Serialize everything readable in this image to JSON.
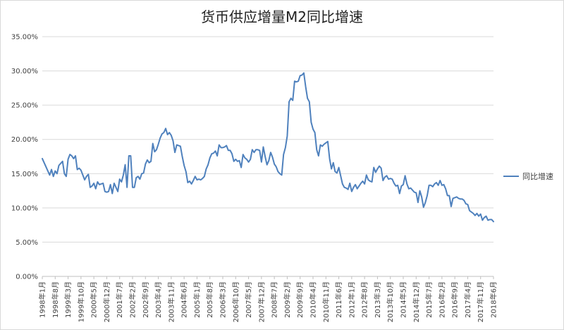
{
  "chart_data": {
    "type": "line",
    "title": "货币供应增量M2同比增速",
    "xlabel": "",
    "ylabel": "",
    "ylim": [
      0,
      35
    ],
    "yticks": [
      "0.00%",
      "5.00%",
      "10.00%",
      "15.00%",
      "20.00%",
      "25.00%",
      "30.00%",
      "35.00%"
    ],
    "grid": true,
    "legend_position": "right",
    "color": "#4f81bd",
    "x_start": "1998年1月",
    "x_end": "2018年6月",
    "xtick_labels": [
      "1998年1月",
      "1998年8月",
      "1999年3月",
      "1999年10月",
      "2000年5月",
      "2000年12月",
      "2001年7月",
      "2002年2月",
      "2002年9月",
      "2003年4月",
      "2003年11月",
      "2004年6月",
      "2005年1月",
      "2005年8月",
      "2006年3月",
      "2006年10月",
      "2007年5月",
      "2007年12月",
      "2008年7月",
      "2009年2月",
      "2009年9月",
      "2010年4月",
      "2010年11月",
      "2011年6月",
      "2012年1月",
      "2012年8月",
      "2013年3月",
      "2013年10月",
      "2014年5月",
      "2014年12月",
      "2015年7月",
      "2016年2月",
      "2016年9月",
      "2017年4月",
      "2017年11月",
      "2018年6月"
    ],
    "series": [
      {
        "name": "同比增速",
        "points": [
          [
            "1998年1月",
            17.2
          ],
          [
            "1998年3月",
            16.0
          ],
          [
            "1998年5月",
            14.8
          ],
          [
            "1998年6月",
            15.6
          ],
          [
            "1998年7月",
            14.6
          ],
          [
            "1998年8月",
            15.4
          ],
          [
            "1998年9月",
            15.0
          ],
          [
            "1998年10月",
            16.2
          ],
          [
            "1998年12月",
            16.8
          ],
          [
            "1999年1月",
            15.0
          ],
          [
            "1999年2月",
            14.6
          ],
          [
            "1999年3月",
            17.1
          ],
          [
            "1999年4月",
            17.8
          ],
          [
            "1999年5月",
            17.6
          ],
          [
            "1999年6月",
            17.2
          ],
          [
            "1999年7月",
            17.6
          ],
          [
            "1999年8月",
            15.6
          ],
          [
            "1999年9月",
            15.8
          ],
          [
            "1999年10月",
            15.5
          ],
          [
            "1999年11月",
            14.8
          ],
          [
            "1999年12月",
            14.1
          ],
          [
            "2000年1月",
            14.6
          ],
          [
            "2000年2月",
            14.9
          ],
          [
            "2000年3月",
            13.0
          ],
          [
            "2000年4月",
            13.2
          ],
          [
            "2000年5月",
            13.6
          ],
          [
            "2000年6月",
            12.8
          ],
          [
            "2000年7月",
            13.8
          ],
          [
            "2000年8月",
            13.4
          ],
          [
            "2000年9月",
            13.5
          ],
          [
            "2000年10月",
            13.6
          ],
          [
            "2000年11月",
            12.4
          ],
          [
            "2000年12月",
            12.3
          ],
          [
            "2001年1月",
            12.4
          ],
          [
            "2001年2月",
            13.4
          ],
          [
            "2001年3月",
            12.1
          ],
          [
            "2001年4月",
            13.6
          ],
          [
            "2001年5月",
            13.0
          ],
          [
            "2001年6月",
            12.4
          ],
          [
            "2001年7月",
            14.2
          ],
          [
            "2001年8月",
            13.8
          ],
          [
            "2001年9月",
            14.8
          ],
          [
            "2001年10月",
            16.3
          ],
          [
            "2001年11月",
            13.0
          ],
          [
            "2001年12月",
            17.6
          ],
          [
            "2002年1月",
            17.6
          ],
          [
            "2002年2月",
            13.0
          ],
          [
            "2002年3月",
            13.0
          ],
          [
            "2002年4月",
            14.4
          ],
          [
            "2002年5月",
            14.6
          ],
          [
            "2002年6月",
            14.2
          ],
          [
            "2002年7月",
            15.0
          ],
          [
            "2002年8月",
            15.1
          ],
          [
            "2002年9月",
            16.4
          ],
          [
            "2002年10月",
            17.0
          ],
          [
            "2002年11月",
            16.6
          ],
          [
            "2002年12月",
            16.8
          ],
          [
            "2003年1月",
            19.4
          ],
          [
            "2003年2月",
            18.2
          ],
          [
            "2003年3月",
            18.5
          ],
          [
            "2003年4月",
            19.3
          ],
          [
            "2003年5月",
            20.2
          ],
          [
            "2003年6月",
            20.8
          ],
          [
            "2003年7月",
            21.0
          ],
          [
            "2003年8月",
            21.6
          ],
          [
            "2003年9月",
            20.7
          ],
          [
            "2003年10月",
            21.0
          ],
          [
            "2003年11月",
            20.6
          ],
          [
            "2003年12月",
            19.8
          ],
          [
            "2004年1月",
            18.1
          ],
          [
            "2004年2月",
            19.2
          ],
          [
            "2004年3月",
            19.1
          ],
          [
            "2004年4月",
            19.0
          ],
          [
            "2004年5月",
            17.5
          ],
          [
            "2004年6月",
            16.2
          ],
          [
            "2004年7月",
            15.3
          ],
          [
            "2004年8月",
            13.7
          ],
          [
            "2004年9月",
            13.9
          ],
          [
            "2004年10月",
            13.5
          ],
          [
            "2004年11月",
            14.0
          ],
          [
            "2004年12月",
            14.6
          ],
          [
            "2005年1月",
            14.1
          ],
          [
            "2005年2月",
            14.2
          ],
          [
            "2005年3月",
            14.1
          ],
          [
            "2005年4月",
            14.3
          ],
          [
            "2005年5月",
            14.6
          ],
          [
            "2005年6月",
            15.7
          ],
          [
            "2005年7月",
            16.3
          ],
          [
            "2005年8月",
            17.3
          ],
          [
            "2005年9月",
            17.9
          ],
          [
            "2005年10月",
            18.0
          ],
          [
            "2005年11月",
            18.3
          ],
          [
            "2005年12月",
            17.6
          ],
          [
            "2006年1月",
            19.2
          ],
          [
            "2006年2月",
            18.8
          ],
          [
            "2006年3月",
            18.8
          ],
          [
            "2006年4月",
            18.9
          ],
          [
            "2006年5月",
            19.1
          ],
          [
            "2006年6月",
            18.4
          ],
          [
            "2006年7月",
            18.4
          ],
          [
            "2006年8月",
            17.9
          ],
          [
            "2006年9月",
            16.8
          ],
          [
            "2006年10月",
            17.1
          ],
          [
            "2006年11月",
            16.8
          ],
          [
            "2006年12月",
            16.9
          ],
          [
            "2007年1月",
            15.9
          ],
          [
            "2007年2月",
            17.8
          ],
          [
            "2007年3月",
            17.3
          ],
          [
            "2007年4月",
            17.1
          ],
          [
            "2007年5月",
            16.7
          ],
          [
            "2007年6月",
            17.1
          ],
          [
            "2007年7月",
            18.5
          ],
          [
            "2007年8月",
            18.1
          ],
          [
            "2007年9月",
            18.5
          ],
          [
            "2007年10月",
            18.5
          ],
          [
            "2007年11月",
            18.4
          ],
          [
            "2007年12月",
            16.7
          ],
          [
            "2008年1月",
            18.9
          ],
          [
            "2008年2月",
            17.5
          ],
          [
            "2008年3月",
            16.3
          ],
          [
            "2008年4月",
            16.9
          ],
          [
            "2008年5月",
            18.1
          ],
          [
            "2008年6月",
            17.4
          ],
          [
            "2008年7月",
            16.4
          ],
          [
            "2008年8月",
            16.0
          ],
          [
            "2008年9月",
            15.3
          ],
          [
            "2008年10月",
            15.0
          ],
          [
            "2008年11月",
            14.8
          ],
          [
            "2008年12月",
            17.8
          ],
          [
            "2009年1月",
            18.8
          ],
          [
            "2009年2月",
            20.5
          ],
          [
            "2009年3月",
            25.5
          ],
          [
            "2009年4月",
            26.0
          ],
          [
            "2009年5月",
            25.7
          ],
          [
            "2009年6月",
            28.5
          ],
          [
            "2009年7月",
            28.4
          ],
          [
            "2009年8月",
            28.5
          ],
          [
            "2009年9月",
            29.3
          ],
          [
            "2009年10月",
            29.4
          ],
          [
            "2009年11月",
            29.7
          ],
          [
            "2009年12月",
            27.7
          ],
          [
            "2010年1月",
            26.0
          ],
          [
            "2010年2月",
            25.5
          ],
          [
            "2010年3月",
            22.5
          ],
          [
            "2010年4月",
            21.5
          ],
          [
            "2010年5月",
            21.0
          ],
          [
            "2010年6月",
            18.5
          ],
          [
            "2010年7月",
            17.6
          ],
          [
            "2010年8月",
            19.2
          ],
          [
            "2010年9月",
            19.0
          ],
          [
            "2010年10月",
            19.3
          ],
          [
            "2010年11月",
            19.5
          ],
          [
            "2010年12月",
            19.7
          ],
          [
            "2011年1月",
            17.2
          ],
          [
            "2011年2月",
            15.7
          ],
          [
            "2011年3月",
            16.6
          ],
          [
            "2011年4月",
            15.3
          ],
          [
            "2011年5月",
            15.1
          ],
          [
            "2011年6月",
            15.9
          ],
          [
            "2011年7月",
            14.7
          ],
          [
            "2011年8月",
            13.5
          ],
          [
            "2011年9月",
            13.0
          ],
          [
            "2011年10月",
            12.9
          ],
          [
            "2011年11月",
            12.7
          ],
          [
            "2011年12月",
            13.6
          ],
          [
            "2012年1月",
            12.4
          ],
          [
            "2012年2月",
            13.0
          ],
          [
            "2012年3月",
            13.4
          ],
          [
            "2012年4月",
            12.8
          ],
          [
            "2012年5月",
            13.2
          ],
          [
            "2012年6月",
            13.6
          ],
          [
            "2012年7月",
            13.9
          ],
          [
            "2012年8月",
            13.5
          ],
          [
            "2012年9月",
            14.8
          ],
          [
            "2012年10月",
            14.1
          ],
          [
            "2012年11月",
            13.9
          ],
          [
            "2012年12月",
            13.8
          ],
          [
            "2013年1月",
            15.9
          ],
          [
            "2013年2月",
            15.2
          ],
          [
            "2013年3月",
            15.7
          ],
          [
            "2013年4月",
            16.1
          ],
          [
            "2013年5月",
            15.8
          ],
          [
            "2013年6月",
            14.0
          ],
          [
            "2013年7月",
            14.5
          ],
          [
            "2013年8月",
            14.7
          ],
          [
            "2013年9月",
            14.2
          ],
          [
            "2013年10月",
            14.3
          ],
          [
            "2013年11月",
            14.2
          ],
          [
            "2013年12月",
            13.6
          ],
          [
            "2014年1月",
            13.2
          ],
          [
            "2014年2月",
            13.3
          ],
          [
            "2014年3月",
            12.1
          ],
          [
            "2014年4月",
            13.2
          ],
          [
            "2014年5月",
            13.4
          ],
          [
            "2014年6月",
            14.7
          ],
          [
            "2014年7月",
            13.5
          ],
          [
            "2014年8月",
            12.8
          ],
          [
            "2014年9月",
            12.9
          ],
          [
            "2014年10月",
            12.6
          ],
          [
            "2014年11月",
            12.3
          ],
          [
            "2014年12月",
            12.2
          ],
          [
            "2015年1月",
            10.8
          ],
          [
            "2015年2月",
            12.5
          ],
          [
            "2015年3月",
            11.6
          ],
          [
            "2015年4月",
            10.1
          ],
          [
            "2015年5月",
            10.8
          ],
          [
            "2015年6月",
            11.8
          ],
          [
            "2015年7月",
            13.3
          ],
          [
            "2015年8月",
            13.3
          ],
          [
            "2015年9月",
            13.1
          ],
          [
            "2015年10月",
            13.5
          ],
          [
            "2015年11月",
            13.7
          ],
          [
            "2015年12月",
            13.3
          ],
          [
            "2016年1月",
            14.0
          ],
          [
            "2016年2月",
            13.3
          ],
          [
            "2016年3月",
            13.4
          ],
          [
            "2016年4月",
            12.8
          ],
          [
            "2016年5月",
            11.8
          ],
          [
            "2016年6月",
            11.8
          ],
          [
            "2016年7月",
            10.2
          ],
          [
            "2016年8月",
            11.4
          ],
          [
            "2016年9月",
            11.5
          ],
          [
            "2016年10月",
            11.6
          ],
          [
            "2016年11月",
            11.4
          ],
          [
            "2016年12月",
            11.3
          ],
          [
            "2017年1月",
            11.3
          ],
          [
            "2017年2月",
            11.1
          ],
          [
            "2017年3月",
            10.6
          ],
          [
            "2017年4月",
            10.5
          ],
          [
            "2017年5月",
            9.6
          ],
          [
            "2017年6月",
            9.4
          ],
          [
            "2017年7月",
            9.2
          ],
          [
            "2017年8月",
            8.9
          ],
          [
            "2017年9月",
            9.2
          ],
          [
            "2017年10月",
            8.8
          ],
          [
            "2017年11月",
            9.1
          ],
          [
            "2017年12月",
            8.2
          ],
          [
            "2018年1月",
            8.6
          ],
          [
            "2018年2月",
            8.8
          ],
          [
            "2018年3月",
            8.2
          ],
          [
            "2018年4月",
            8.3
          ],
          [
            "2018年5月",
            8.3
          ],
          [
            "2018年6月",
            8.0
          ]
        ]
      }
    ]
  }
}
